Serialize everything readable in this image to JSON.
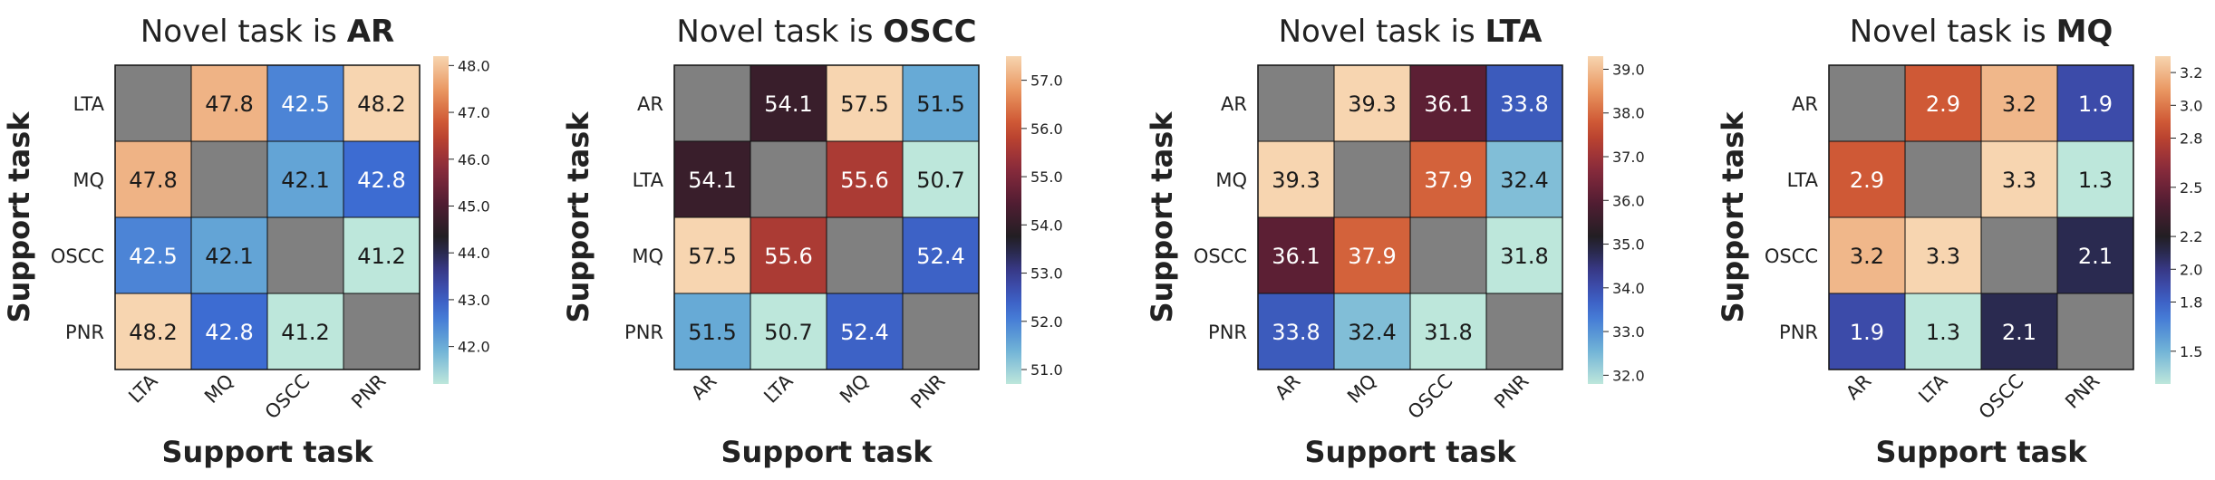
{
  "chart_data": [
    {
      "type": "heatmap",
      "title_prefix": "Novel task is ",
      "title_bold": "AR",
      "xlabel": "Support task",
      "ylabel": "Support task",
      "rows": [
        "LTA",
        "MQ",
        "OSCC",
        "PNR"
      ],
      "cols": [
        "LTA",
        "MQ",
        "OSCC",
        "PNR"
      ],
      "values": [
        [
          null,
          47.8,
          42.5,
          48.2
        ],
        [
          47.8,
          null,
          42.1,
          42.8
        ],
        [
          42.5,
          42.1,
          null,
          41.2
        ],
        [
          48.2,
          42.8,
          41.2,
          null
        ]
      ],
      "labels": [
        [
          "",
          "47.8",
          "42.5",
          "48.2"
        ],
        [
          "47.8",
          "",
          "42.1",
          "42.8"
        ],
        [
          "42.5",
          "42.1",
          "",
          "41.2"
        ],
        [
          "48.2",
          "42.8",
          "41.2",
          ""
        ]
      ],
      "colorbar": {
        "range": [
          41.2,
          48.2
        ],
        "ticks": [
          42.0,
          43.0,
          44.0,
          45.0,
          46.0,
          47.0,
          48.0
        ],
        "tick_labels": [
          "42.0",
          "43.0",
          "44.0",
          "45.0",
          "46.0",
          "47.0",
          "48.0"
        ]
      }
    },
    {
      "type": "heatmap",
      "title_prefix": "Novel task is ",
      "title_bold": "OSCC",
      "xlabel": "Support task",
      "ylabel": "Support task",
      "rows": [
        "AR",
        "LTA",
        "MQ",
        "PNR"
      ],
      "cols": [
        "AR",
        "LTA",
        "MQ",
        "PNR"
      ],
      "values": [
        [
          null,
          54.1,
          57.5,
          51.5
        ],
        [
          54.1,
          null,
          55.6,
          50.7
        ],
        [
          57.5,
          55.6,
          null,
          52.4
        ],
        [
          51.5,
          50.7,
          52.4,
          null
        ]
      ],
      "labels": [
        [
          "",
          "54.1",
          "57.5",
          "51.5"
        ],
        [
          "54.1",
          "",
          "55.6",
          "50.7"
        ],
        [
          "57.5",
          "55.6",
          "",
          "52.4"
        ],
        [
          "51.5",
          "50.7",
          "52.4",
          ""
        ]
      ],
      "colorbar": {
        "range": [
          50.7,
          57.5
        ],
        "ticks": [
          51.0,
          52.0,
          53.0,
          54.0,
          55.0,
          56.0,
          57.0
        ],
        "tick_labels": [
          "51.0",
          "52.0",
          "53.0",
          "54.0",
          "55.0",
          "56.0",
          "57.0"
        ]
      }
    },
    {
      "type": "heatmap",
      "title_prefix": "Novel task is ",
      "title_bold": "LTA",
      "xlabel": "Support task",
      "ylabel": "Support task",
      "rows": [
        "AR",
        "MQ",
        "OSCC",
        "PNR"
      ],
      "cols": [
        "AR",
        "MQ",
        "OSCC",
        "PNR"
      ],
      "values": [
        [
          null,
          39.3,
          36.1,
          33.8
        ],
        [
          39.3,
          null,
          37.9,
          32.4
        ],
        [
          36.1,
          37.9,
          null,
          31.8
        ],
        [
          33.8,
          32.4,
          31.8,
          null
        ]
      ],
      "labels": [
        [
          "",
          "39.3",
          "36.1",
          "33.8"
        ],
        [
          "39.3",
          "",
          "37.9",
          "32.4"
        ],
        [
          "36.1",
          "37.9",
          "",
          "31.8"
        ],
        [
          "33.8",
          "32.4",
          "31.8",
          ""
        ]
      ],
      "colorbar": {
        "range": [
          31.8,
          39.3
        ],
        "ticks": [
          32.0,
          33.0,
          34.0,
          35.0,
          36.0,
          37.0,
          38.0,
          39.0
        ],
        "tick_labels": [
          "32.0",
          "33.0",
          "34.0",
          "35.0",
          "36.0",
          "37.0",
          "38.0",
          "39.0"
        ]
      }
    },
    {
      "type": "heatmap",
      "title_prefix": "Novel task is ",
      "title_bold": "MQ",
      "xlabel": "Support task",
      "ylabel": "Support task",
      "rows": [
        "AR",
        "LTA",
        "OSCC",
        "PNR"
      ],
      "cols": [
        "AR",
        "LTA",
        "OSCC",
        "PNR"
      ],
      "values": [
        [
          null,
          2.9,
          3.2,
          1.9
        ],
        [
          2.9,
          null,
          3.3,
          1.3
        ],
        [
          3.2,
          3.3,
          null,
          2.1
        ],
        [
          1.9,
          1.3,
          2.1,
          null
        ]
      ],
      "labels": [
        [
          "",
          "2.9",
          "3.2",
          "1.9"
        ],
        [
          "2.9",
          "",
          "3.3",
          "1.3"
        ],
        [
          "3.2",
          "3.3",
          "",
          "2.1"
        ],
        [
          "1.9",
          "1.3",
          "2.1",
          ""
        ]
      ],
      "colorbar": {
        "range": [
          1.3,
          3.3
        ],
        "ticks": [
          1.5,
          1.8,
          2.0,
          2.2,
          2.5,
          2.8,
          3.0,
          3.2
        ],
        "tick_labels": [
          "1.5",
          "1.8",
          "2.0",
          "2.2",
          "2.5",
          "2.8",
          "3.0",
          "3.2"
        ]
      }
    }
  ],
  "colormap": {
    "name": "icefire",
    "diagonal_color": "#808080",
    "stops": [
      "#bde7db",
      "#6aaed6",
      "#3d6fd6",
      "#3b3c96",
      "#1f1e22",
      "#531d33",
      "#8e2c3c",
      "#c94b2c",
      "#e8925c",
      "#f7d5b0"
    ]
  }
}
